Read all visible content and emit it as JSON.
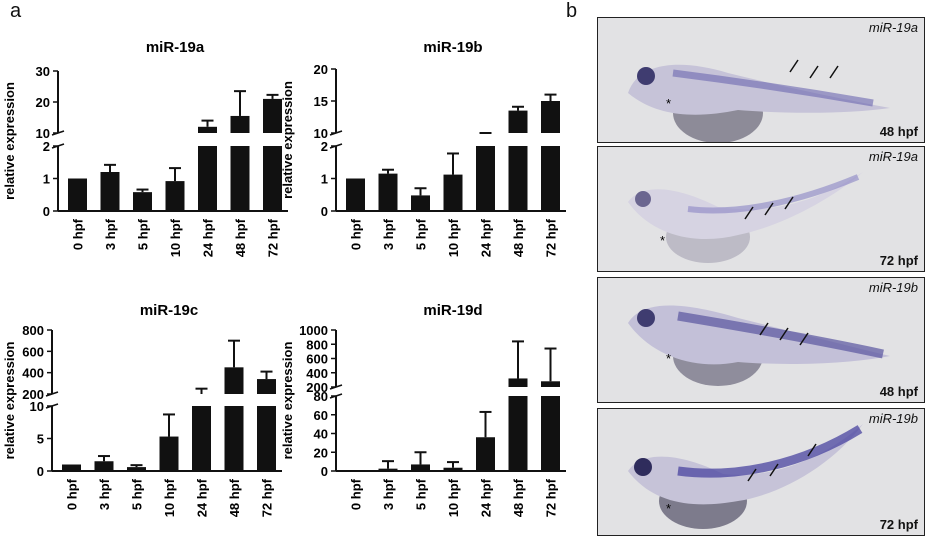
{
  "panel_labels": {
    "a": "a",
    "b": "b"
  },
  "chart_data": [
    {
      "type": "bar",
      "title": "miR-19a",
      "ylabel": "relative expression",
      "categories": [
        "0 hpf",
        "3 hpf",
        "5 hpf",
        "10 hpf",
        "24 hpf",
        "48 hpf",
        "72 hpf"
      ],
      "values": [
        1,
        1.2,
        0.58,
        0.92,
        12,
        15.5,
        21
      ],
      "errors": [
        0,
        0.22,
        0.08,
        0.4,
        2,
        8,
        1.3
      ],
      "broken_axis": {
        "lower_ticks": [
          0,
          1,
          2
        ],
        "upper_ticks": [
          10,
          20,
          30
        ]
      }
    },
    {
      "type": "bar",
      "title": "miR-19b",
      "ylabel": "relative expression",
      "categories": [
        "0 hpf",
        "3 hpf",
        "5 hpf",
        "10 hpf",
        "24 hpf",
        "48 hpf",
        "72 hpf"
      ],
      "values": [
        1,
        1.15,
        0.48,
        1.12,
        7.5,
        13.5,
        15
      ],
      "errors": [
        0,
        0.12,
        0.22,
        0.65,
        1.2,
        0.6,
        1
      ],
      "broken_axis": {
        "lower_ticks": [
          0,
          1,
          2
        ],
        "upper_ticks": [
          10,
          15,
          20
        ]
      }
    },
    {
      "type": "bar",
      "title": "miR-19c",
      "ylabel": "relative expression",
      "categories": [
        "0 hpf",
        "3 hpf",
        "5 hpf",
        "10 hpf",
        "24 hpf",
        "48 hpf",
        "72 hpf"
      ],
      "values": [
        1,
        1.5,
        0.6,
        5.3,
        200,
        450,
        340
      ],
      "errors": [
        0,
        0.8,
        0.3,
        3.4,
        50,
        250,
        70
      ],
      "broken_axis": {
        "lower_ticks": [
          0,
          5,
          10
        ],
        "upper_ticks": [
          200,
          400,
          600,
          800
        ]
      }
    },
    {
      "type": "bar",
      "title": "miR-19d",
      "ylabel": "relative expression",
      "categories": [
        "0 hpf",
        "3 hpf",
        "5 hpf",
        "10 hpf",
        "24 hpf",
        "48 hpf",
        "72 hpf"
      ],
      "values": [
        0.5,
        2.5,
        7,
        3.5,
        36,
        320,
        280
      ],
      "errors": [
        0,
        8,
        13,
        6,
        27,
        520,
        460
      ],
      "broken_axis": {
        "lower_ticks": [
          0,
          20,
          40,
          60,
          80
        ],
        "upper_ticks": [
          200,
          400,
          600,
          800,
          1000
        ]
      }
    }
  ],
  "images": [
    {
      "probe": "miR-19a",
      "stage": "48 hpf"
    },
    {
      "probe": "miR-19a",
      "stage": "72 hpf"
    },
    {
      "probe": "miR-19b",
      "stage": "48 hpf"
    },
    {
      "probe": "miR-19b",
      "stage": "72 hpf"
    }
  ],
  "colors": {
    "bar": "#111111",
    "fish_stain": "#5a55a0",
    "panel_bg": "#e2e2e4"
  }
}
